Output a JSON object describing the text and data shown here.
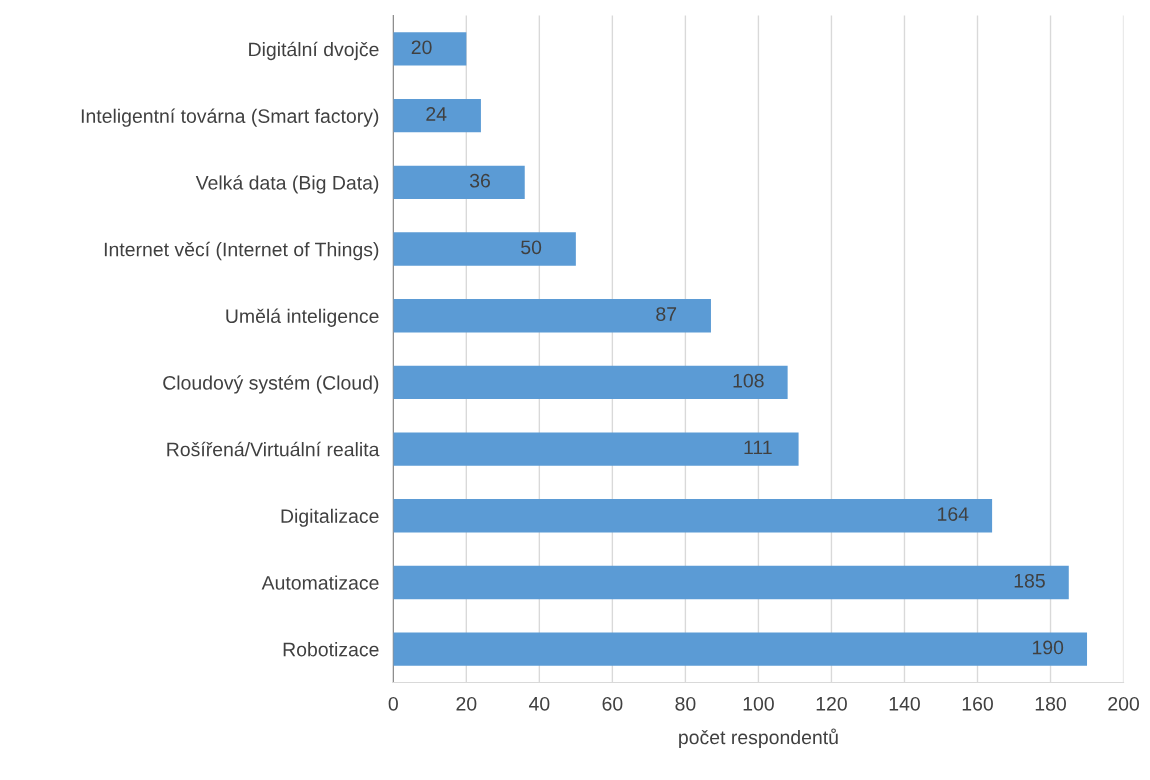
{
  "chart_data": {
    "type": "bar",
    "orientation": "horizontal",
    "xlabel": "počet respondentů",
    "categories": [
      "Digitální dvojče",
      "Inteligentní továrna (Smart factory)",
      "Velká data (Big Data)",
      "Internet věcí (Internet of Things)",
      "Umělá inteligence",
      "Cloudový systém (Cloud)",
      "Rošířená/Virtuální realita",
      "Digitalizace",
      "Automatizace",
      "Robotizace"
    ],
    "values": [
      20,
      24,
      36,
      50,
      87,
      108,
      111,
      164,
      185,
      190
    ],
    "color": "#5b9bd5",
    "xlim": [
      0,
      200
    ],
    "xticks": [
      0,
      20,
      40,
      60,
      80,
      100,
      120,
      140,
      160,
      180,
      200
    ],
    "grid": "x",
    "data_labels": true,
    "legend": false
  }
}
